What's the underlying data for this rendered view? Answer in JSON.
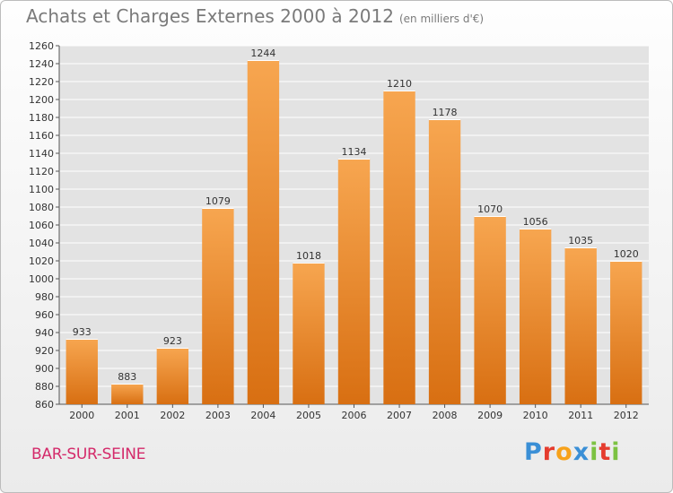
{
  "title": "Achats et Charges Externes 2000 à 2012",
  "subtitle": "(en milliers d'€)",
  "commune": "BAR-SUR-SEINE",
  "logo": {
    "text": "Proxiti",
    "letters": [
      "P",
      "r",
      "o",
      "x",
      "i",
      "t",
      "i"
    ],
    "colors": [
      "#3a8fd6",
      "#e53c2e",
      "#f7a21b",
      "#3a8fd6",
      "#7cc242",
      "#e53c2e",
      "#7cc242"
    ]
  },
  "colors": {
    "bar_top": "#f7a650",
    "bar_bottom": "#d86f12",
    "grid": "#ffffff",
    "plot_bg": "#e3e3e3"
  },
  "chart_data": {
    "type": "bar",
    "categories": [
      "2000",
      "2001",
      "2002",
      "2003",
      "2004",
      "2005",
      "2006",
      "2007",
      "2008",
      "2009",
      "2010",
      "2011",
      "2012"
    ],
    "values": [
      933,
      883,
      923,
      1079,
      1244,
      1018,
      1134,
      1210,
      1178,
      1070,
      1056,
      1035,
      1020
    ],
    "ylim": [
      860,
      1260
    ],
    "yticks": [
      860,
      880,
      900,
      920,
      940,
      960,
      980,
      1000,
      1020,
      1040,
      1060,
      1080,
      1100,
      1120,
      1140,
      1160,
      1180,
      1200,
      1220,
      1240,
      1260
    ],
    "title": "Achats et Charges Externes 2000 à 2012",
    "xlabel": "",
    "ylabel": "",
    "grid": true
  }
}
